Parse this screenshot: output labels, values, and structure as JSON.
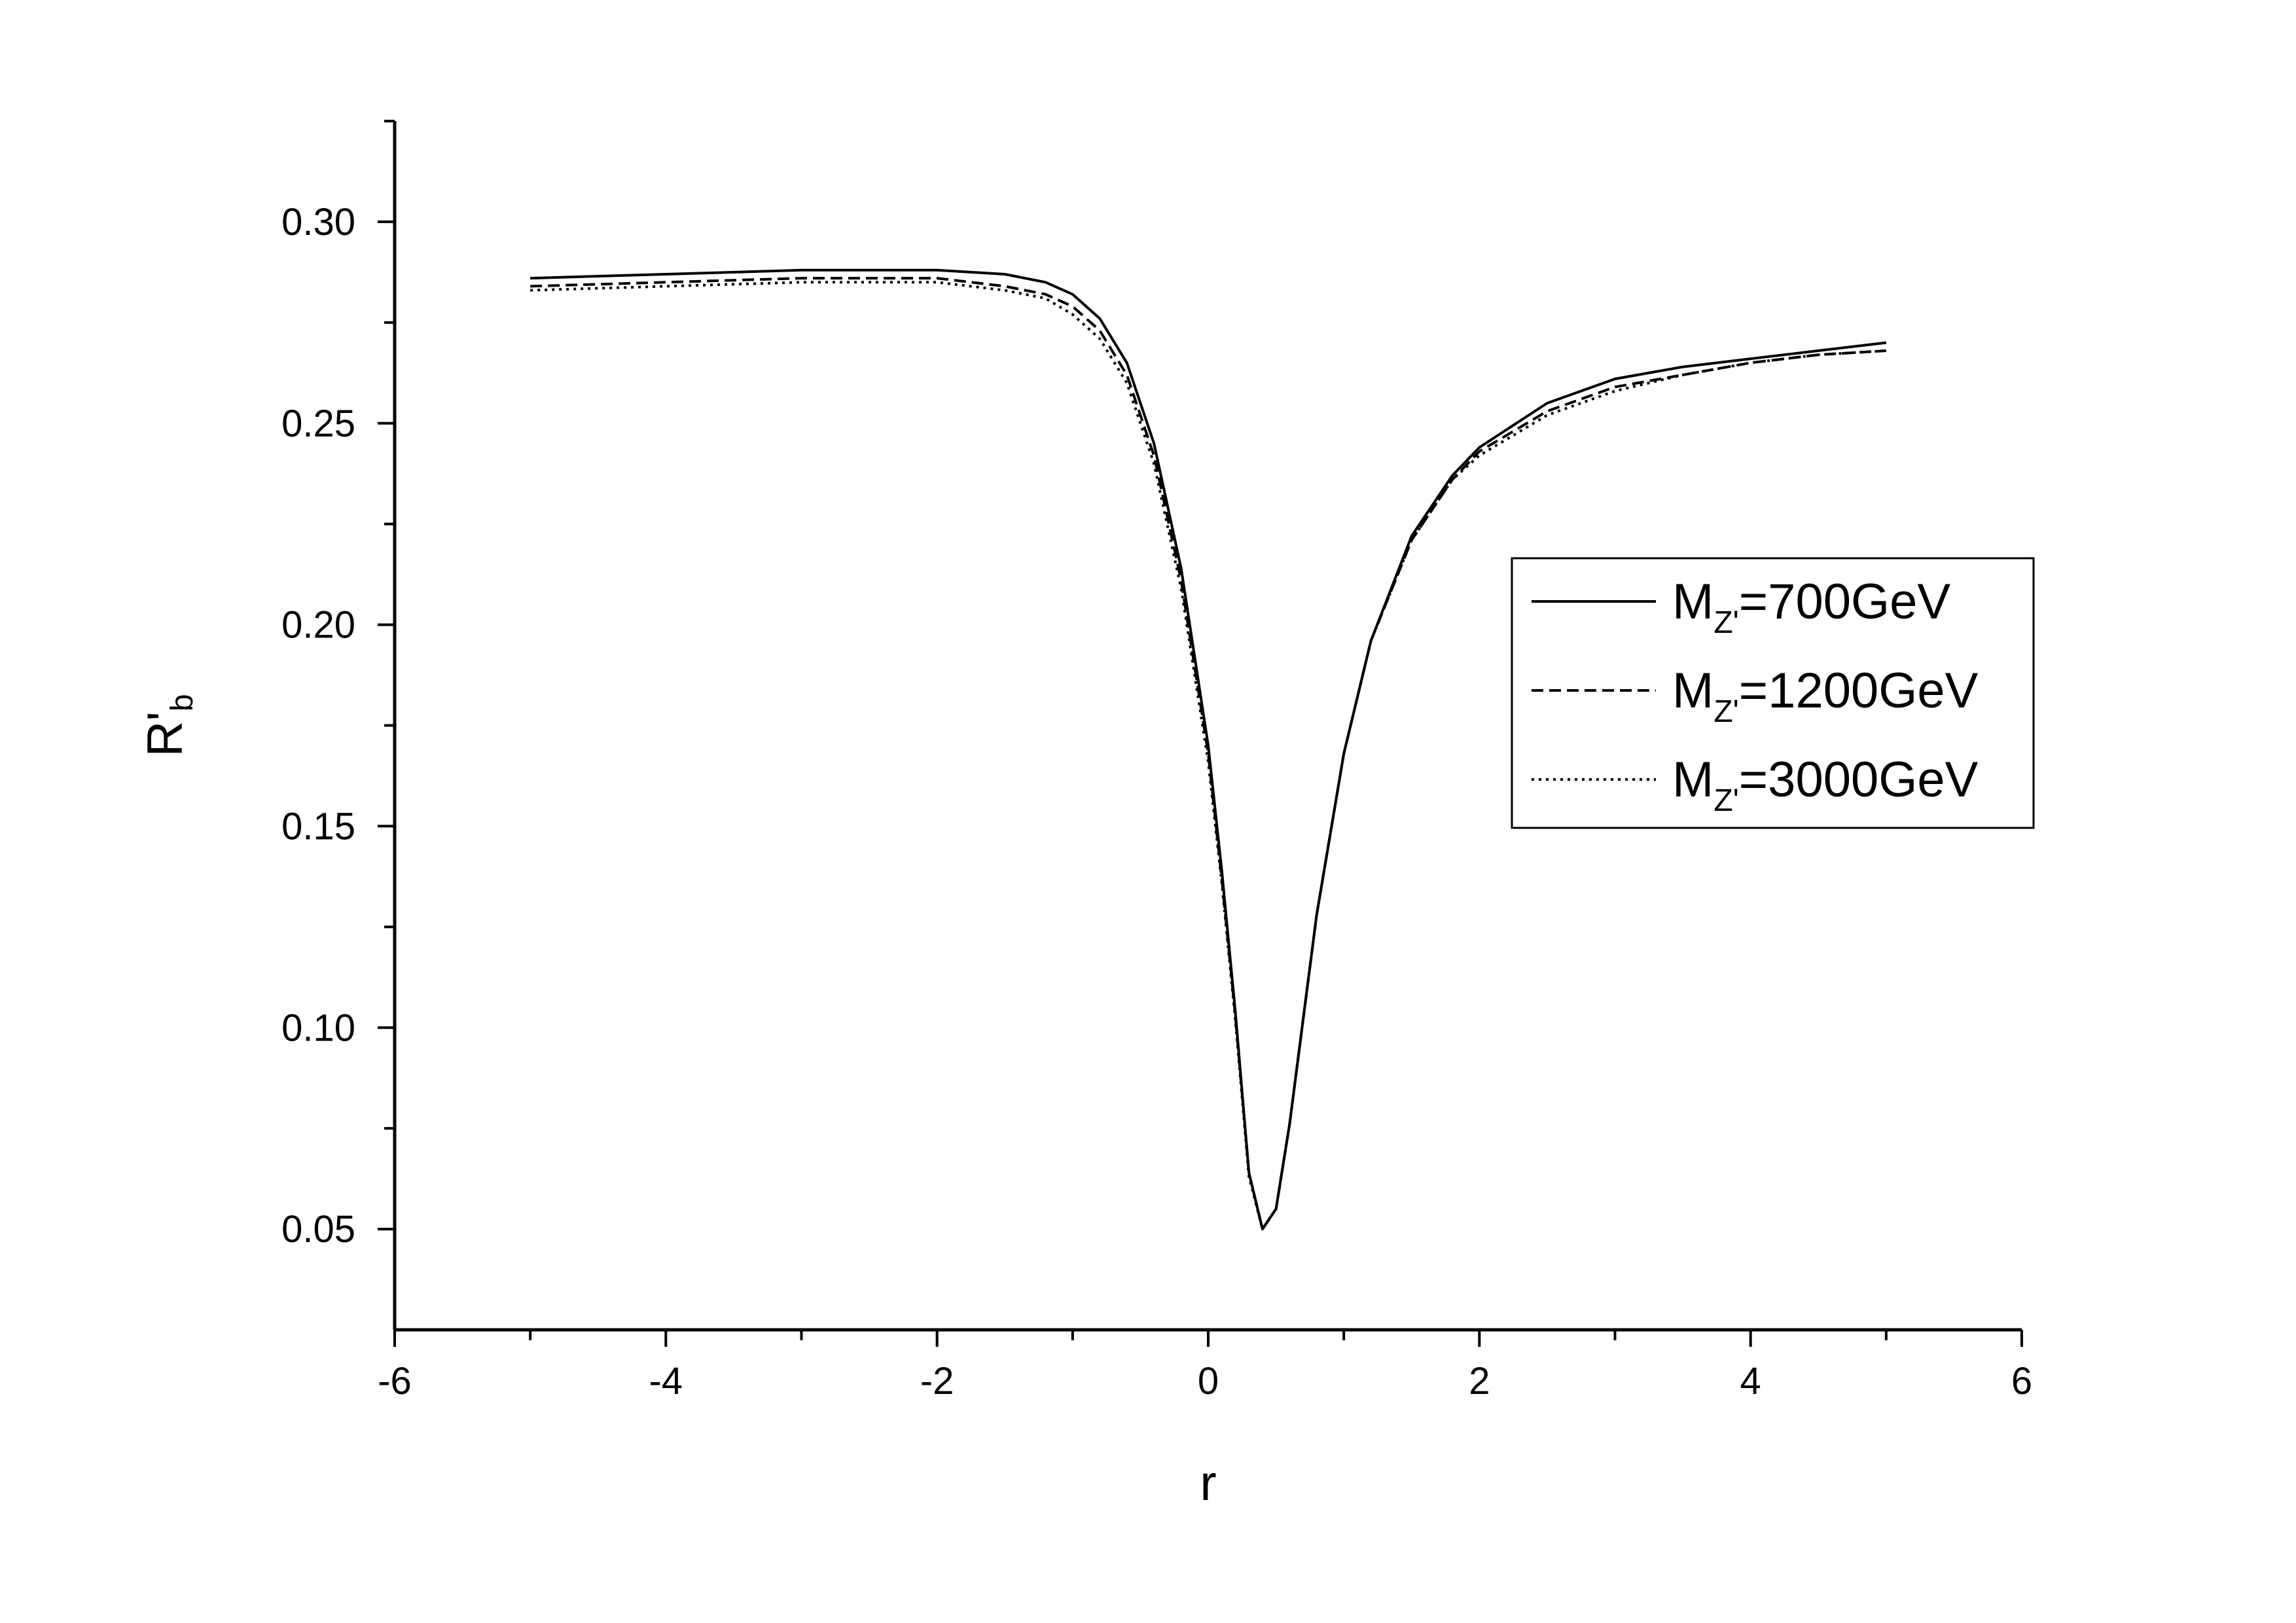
{
  "chart_data": {
    "type": "line",
    "title": "",
    "xlabel": "r",
    "ylabel": {
      "base": "R'",
      "sub": "b"
    },
    "xlim": [
      -6,
      6
    ],
    "ylim": [
      0.025,
      0.325
    ],
    "x_ticks": [
      -6,
      -4,
      -2,
      0,
      2,
      4,
      6
    ],
    "x_tick_labels": [
      "-6",
      "-4",
      "-2",
      "0",
      "2",
      "4",
      "6"
    ],
    "y_ticks": [
      0.05,
      0.1,
      0.15,
      0.2,
      0.25,
      0.3
    ],
    "y_tick_labels": [
      "0.05",
      "0.10",
      "0.15",
      "0.20",
      "0.25",
      "0.30"
    ],
    "grid": false,
    "legend_position": "right",
    "series": [
      {
        "name": {
          "base": "M",
          "sub": "Z'",
          "tail": "=700GeV"
        },
        "style": "solid",
        "color": "#000000",
        "x": [
          -5,
          -4,
          -3,
          -2.5,
          -2,
          -1.5,
          -1.2,
          -1.0,
          -0.8,
          -0.6,
          -0.4,
          -0.2,
          0,
          0.1,
          0.2,
          0.3,
          0.4,
          0.5,
          0.6,
          0.8,
          1.0,
          1.2,
          1.5,
          1.8,
          2.0,
          2.5,
          3.0,
          3.5,
          4.0,
          4.5,
          5.0
        ],
        "y": [
          0.286,
          0.287,
          0.288,
          0.288,
          0.288,
          0.287,
          0.285,
          0.282,
          0.276,
          0.265,
          0.245,
          0.214,
          0.17,
          0.139,
          0.104,
          0.064,
          0.05,
          0.055,
          0.076,
          0.128,
          0.168,
          0.196,
          0.222,
          0.237,
          0.244,
          0.255,
          0.261,
          0.264,
          0.266,
          0.268,
          0.27
        ]
      },
      {
        "name": {
          "base": "M",
          "sub": "Z'",
          "tail": "=1200GeV"
        },
        "style": "dashed",
        "color": "#000000",
        "x": [
          -5,
          -4,
          -3,
          -2.5,
          -2,
          -1.5,
          -1.2,
          -1.0,
          -0.8,
          -0.6,
          -0.4,
          -0.2,
          0,
          0.1,
          0.2,
          0.3,
          0.4,
          0.5,
          0.6,
          0.8,
          1.0,
          1.2,
          1.5,
          1.8,
          2.0,
          2.5,
          3.0,
          3.5,
          4.0,
          4.5,
          5.0
        ],
        "y": [
          0.284,
          0.285,
          0.286,
          0.286,
          0.286,
          0.284,
          0.282,
          0.279,
          0.273,
          0.262,
          0.242,
          0.211,
          0.168,
          0.137,
          0.103,
          0.064,
          0.05,
          0.055,
          0.076,
          0.128,
          0.168,
          0.196,
          0.221,
          0.236,
          0.243,
          0.253,
          0.259,
          0.262,
          0.265,
          0.267,
          0.268
        ]
      },
      {
        "name": {
          "base": "M",
          "sub": "Z'",
          "tail": "=3000GeV"
        },
        "style": "dotted",
        "color": "#000000",
        "x": [
          -5,
          -4,
          -3,
          -2.5,
          -2,
          -1.5,
          -1.2,
          -1.0,
          -0.8,
          -0.6,
          -0.4,
          -0.2,
          0,
          0.1,
          0.2,
          0.3,
          0.4,
          0.5,
          0.6,
          0.8,
          1.0,
          1.2,
          1.5,
          1.8,
          2.0,
          2.5,
          3.0,
          3.5,
          4.0,
          4.5,
          5.0
        ],
        "y": [
          0.283,
          0.284,
          0.285,
          0.285,
          0.285,
          0.283,
          0.281,
          0.277,
          0.271,
          0.26,
          0.24,
          0.209,
          0.166,
          0.136,
          0.102,
          0.063,
          0.05,
          0.055,
          0.076,
          0.128,
          0.168,
          0.196,
          0.221,
          0.236,
          0.242,
          0.252,
          0.258,
          0.262,
          0.265,
          0.267,
          0.268
        ]
      }
    ]
  }
}
